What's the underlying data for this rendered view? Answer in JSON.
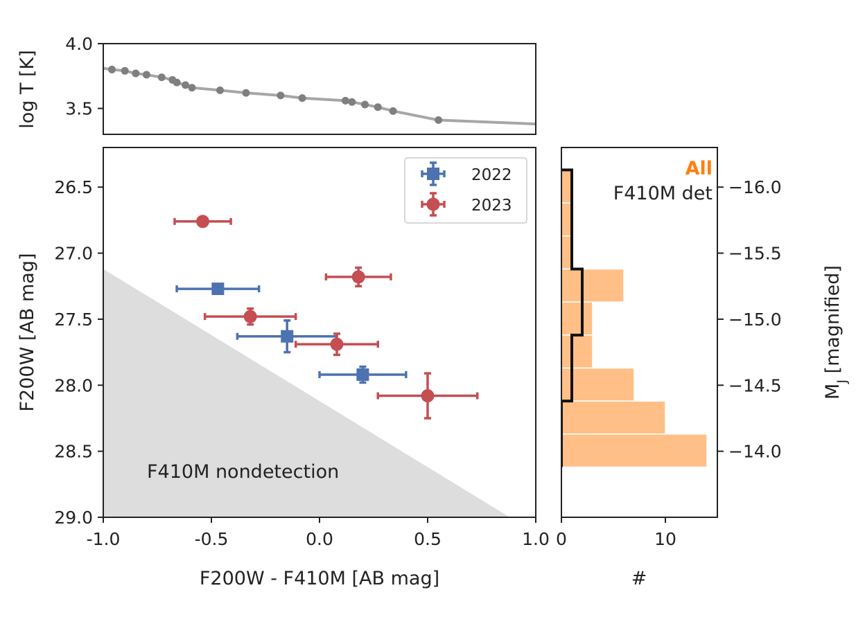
{
  "chart_data": [
    {
      "id": "temperature",
      "type": "line",
      "ylabel": "log T [K]",
      "xlim": [
        -1.0,
        1.0
      ],
      "ylim": [
        3.3,
        4.0
      ],
      "yticks": [
        4.0,
        3.5
      ],
      "ytick_labels": [
        "4.0",
        "3.5"
      ],
      "line_color": "#a6a6a6",
      "marker_color": "#7f7f7f",
      "curve": {
        "x": [
          -1.0,
          -0.96,
          -0.9,
          -0.85,
          -0.8,
          -0.73,
          -0.68,
          -0.66,
          -0.62,
          -0.59,
          -0.46,
          -0.34,
          -0.18,
          -0.08,
          0.12,
          0.15,
          0.21,
          0.27,
          0.34,
          0.55,
          1.0
        ],
        "y": [
          3.81,
          3.8,
          3.79,
          3.77,
          3.76,
          3.74,
          3.72,
          3.7,
          3.68,
          3.66,
          3.64,
          3.62,
          3.6,
          3.58,
          3.56,
          3.55,
          3.53,
          3.51,
          3.48,
          3.41,
          3.38
        ]
      },
      "points": {
        "x": [
          -0.96,
          -0.9,
          -0.85,
          -0.8,
          -0.73,
          -0.68,
          -0.66,
          -0.62,
          -0.59,
          -0.46,
          -0.34,
          -0.18,
          -0.08,
          0.12,
          0.15,
          0.21,
          0.27,
          0.34,
          0.55
        ],
        "y": [
          3.8,
          3.79,
          3.77,
          3.76,
          3.74,
          3.72,
          3.7,
          3.68,
          3.66,
          3.64,
          3.62,
          3.6,
          3.58,
          3.56,
          3.55,
          3.53,
          3.51,
          3.48,
          3.41
        ]
      }
    },
    {
      "id": "cmd",
      "type": "scatter",
      "xlabel": "F200W - F410M [AB mag]",
      "ylabel": "F200W [AB mag]",
      "xlim": [
        -1.0,
        1.0
      ],
      "ylim": [
        29.0,
        26.2
      ],
      "xticks": [
        -1.0,
        -0.5,
        0.0,
        0.5,
        1.0
      ],
      "xtick_labels": [
        "-1.0",
        "-0.5",
        "0.0",
        "0.5",
        "1.0"
      ],
      "yticks": [
        26.5,
        27.0,
        27.5,
        28.0,
        28.5,
        29.0
      ],
      "ytick_labels": [
        "26.5",
        "27.0",
        "27.5",
        "28.0",
        "28.5",
        "29.0"
      ],
      "nondetection": {
        "label": "F410M nondetection",
        "boundary_x": [
          -1.0,
          0.88
        ],
        "boundary_y": [
          27.12,
          29.0
        ],
        "color": "#dddddd"
      },
      "series": [
        {
          "name": "2022",
          "marker": "square",
          "color": "#4c72b0",
          "x": [
            -0.47,
            -0.15,
            0.2
          ],
          "y": [
            27.27,
            27.63,
            27.92
          ],
          "xerr": [
            0.19,
            0.23,
            0.2
          ],
          "yerr": [
            0.0,
            0.12,
            0.06
          ]
        },
        {
          "name": "2023",
          "marker": "circle",
          "color": "#c44e52",
          "x": [
            -0.54,
            0.18,
            -0.32,
            0.08,
            0.5
          ],
          "y": [
            26.76,
            27.18,
            27.48,
            27.69,
            28.08
          ],
          "xerr": [
            0.13,
            0.15,
            0.21,
            0.19,
            0.23
          ],
          "yerr": [
            0.0,
            0.07,
            0.06,
            0.08,
            0.17
          ]
        }
      ],
      "legend": {
        "position": "top-right",
        "entries": [
          "2022",
          "2023"
        ]
      }
    },
    {
      "id": "histogram",
      "type": "bar",
      "orientation": "horizontal",
      "xlabel": "#",
      "ylabel_right": "M_J [magnified]",
      "xlim": [
        0,
        15
      ],
      "xticks": [
        0,
        10
      ],
      "xtick_labels": [
        "0",
        "10"
      ],
      "ylim": [
        -16.3,
        -13.5
      ],
      "yticks": [
        -16.0,
        -15.5,
        -15.0,
        -14.5,
        -14.0
      ],
      "ytick_labels": [
        "−16.0",
        "−15.5",
        "−15.0",
        "−14.5",
        "−14.0"
      ],
      "bin_edges": [
        -16.13,
        -15.88,
        -15.63,
        -15.38,
        -15.13,
        -14.88,
        -14.63,
        -14.38,
        -14.13,
        -13.88
      ],
      "all_counts": [
        1,
        1,
        1,
        6,
        3,
        3,
        7,
        10,
        14
      ],
      "det_counts": [
        1,
        1,
        1,
        2,
        2,
        1,
        1,
        0,
        0
      ],
      "annotations": {
        "all_label": "All",
        "det_label": "F410M det",
        "all_color": "#ff7f0e",
        "bar_color": "#ffbf86",
        "det_color": "#111111"
      }
    }
  ]
}
